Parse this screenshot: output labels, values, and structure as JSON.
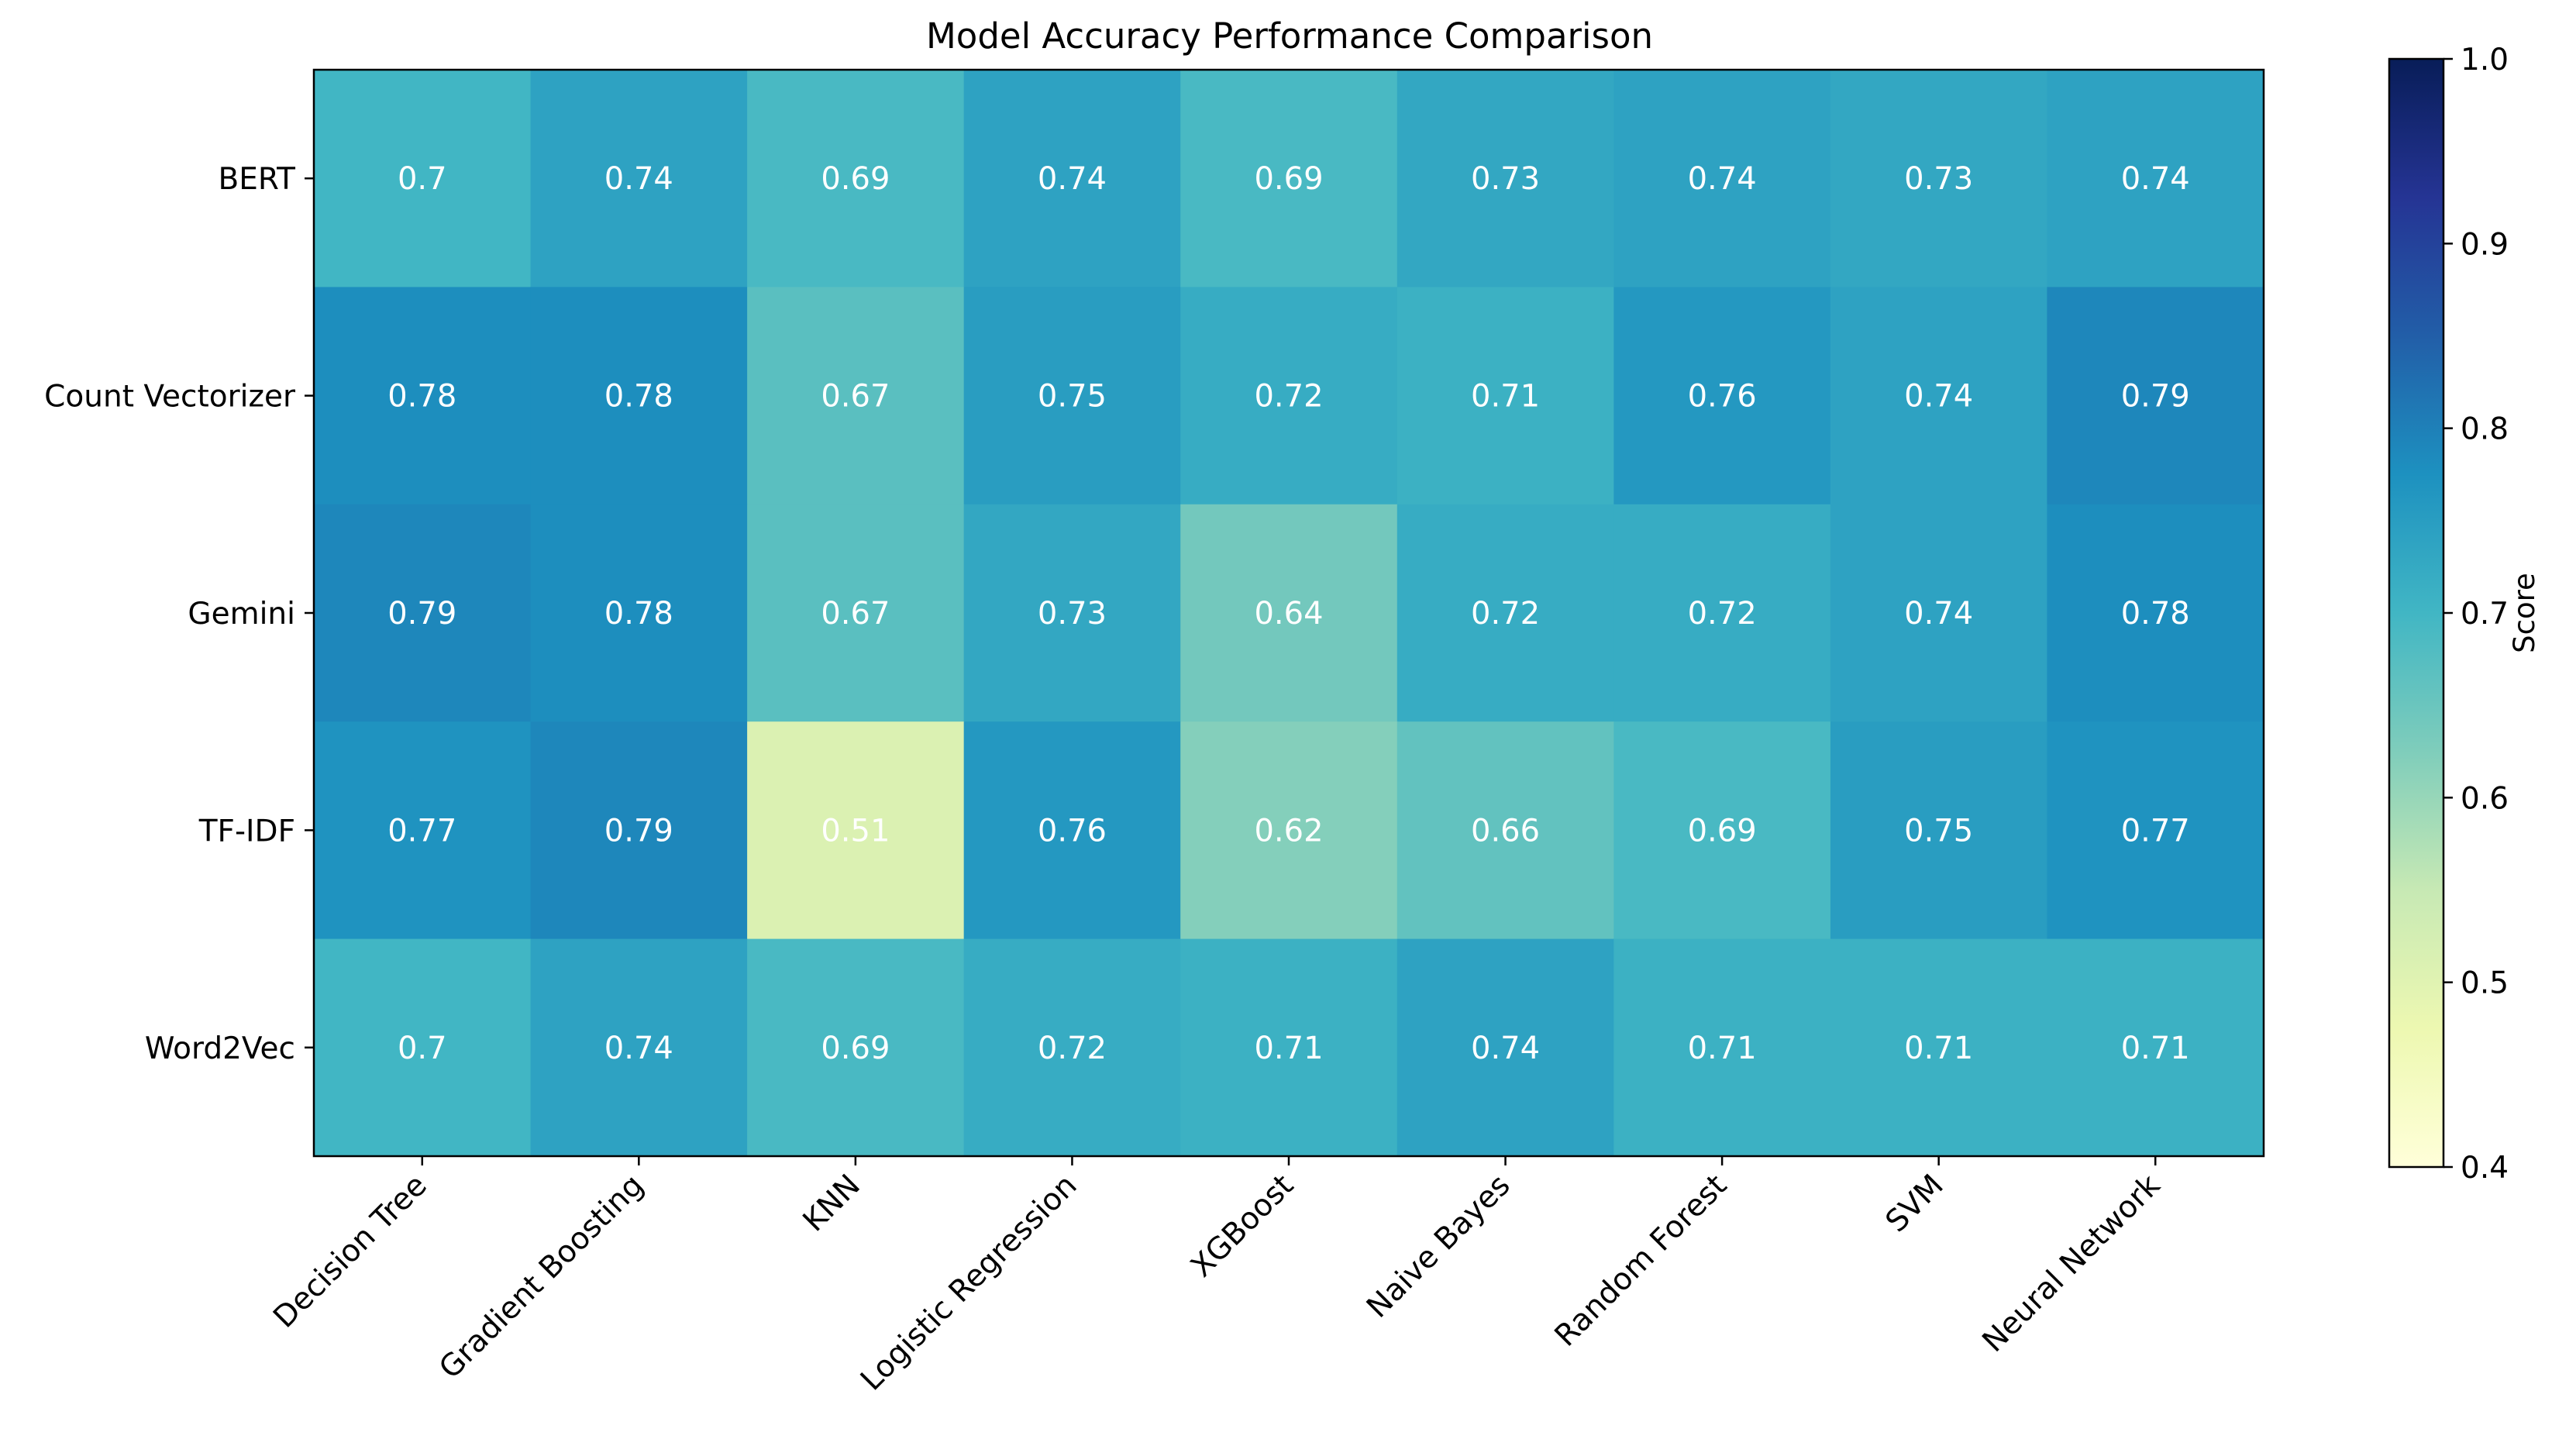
{
  "chart_data": {
    "type": "heatmap",
    "title": "Model Accuracy Performance Comparison",
    "xlabel": "",
    "ylabel": "",
    "x_categories": [
      "Decision Tree",
      "Gradient Boosting",
      "KNN",
      "Logistic Regression",
      "XGBoost",
      "Naive Bayes",
      "Random Forest",
      "SVM",
      "Neural Network"
    ],
    "y_categories": [
      "BERT",
      "Count Vectorizer",
      "Gemini",
      "TF-IDF",
      "Word2Vec"
    ],
    "values": [
      [
        0.7,
        0.74,
        0.69,
        0.74,
        0.69,
        0.73,
        0.74,
        0.73,
        0.74
      ],
      [
        0.78,
        0.78,
        0.67,
        0.75,
        0.72,
        0.71,
        0.76,
        0.74,
        0.79
      ],
      [
        0.79,
        0.78,
        0.67,
        0.73,
        0.64,
        0.72,
        0.72,
        0.74,
        0.78
      ],
      [
        0.77,
        0.79,
        0.51,
        0.76,
        0.62,
        0.66,
        0.69,
        0.75,
        0.77
      ],
      [
        0.7,
        0.74,
        0.69,
        0.72,
        0.71,
        0.74,
        0.71,
        0.71,
        0.71
      ]
    ],
    "value_labels": [
      [
        "0.7",
        "0.74",
        "0.69",
        "0.74",
        "0.69",
        "0.73",
        "0.74",
        "0.73",
        "0.74"
      ],
      [
        "0.78",
        "0.78",
        "0.67",
        "0.75",
        "0.72",
        "0.71",
        "0.76",
        "0.74",
        "0.79"
      ],
      [
        "0.79",
        "0.78",
        "0.67",
        "0.73",
        "0.64",
        "0.72",
        "0.72",
        "0.74",
        "0.78"
      ],
      [
        "0.77",
        "0.79",
        "0.51",
        "0.76",
        "0.62",
        "0.66",
        "0.69",
        "0.75",
        "0.77"
      ],
      [
        "0.7",
        "0.74",
        "0.69",
        "0.72",
        "0.71",
        "0.74",
        "0.71",
        "0.71",
        "0.71"
      ]
    ],
    "colorbar": {
      "label": "Score",
      "vmin": 0.4,
      "vmax": 1.0,
      "ticks": [
        0.4,
        0.5,
        0.6,
        0.7,
        0.8,
        0.9,
        1.0
      ],
      "tick_labels": [
        "0.4",
        "0.5",
        "0.6",
        "0.7",
        "0.8",
        "0.9",
        "1.0"
      ],
      "colormap": "YlGnBu",
      "colormap_stops": [
        "#ffffd9",
        "#edf8b1",
        "#c7e9b4",
        "#7fcdbb",
        "#41b6c4",
        "#1d91c0",
        "#225ea8",
        "#253494",
        "#081d58"
      ]
    },
    "annotation_color": "#ffffff",
    "grid": false
  }
}
